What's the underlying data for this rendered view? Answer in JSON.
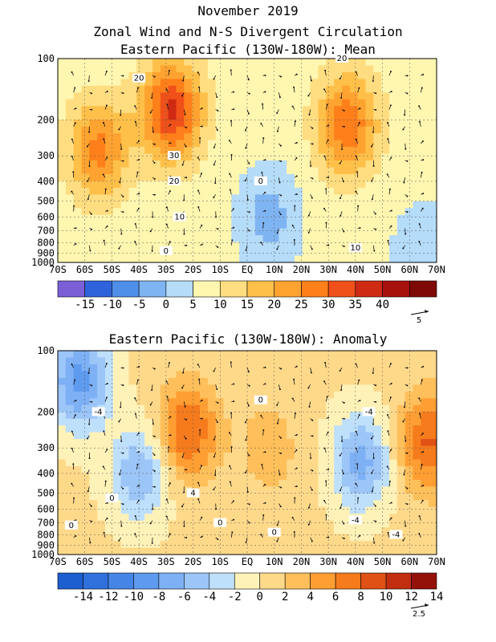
{
  "header": {
    "title": "November 2019",
    "subtitle": "Zonal Wind and N-S Divergent Circulation"
  },
  "chart_data": [
    {
      "type": "heatmap",
      "title": "Eastern Pacific (130W-180W): Mean",
      "x_ticks": [
        "70S",
        "60S",
        "50S",
        "40S",
        "30S",
        "20S",
        "10S",
        "EQ",
        "10N",
        "20N",
        "30N",
        "40N",
        "50N",
        "60N",
        "70N"
      ],
      "y_ticks": [
        "100",
        "200",
        "300",
        "400",
        "500",
        "600",
        "700",
        "800",
        "900",
        "1000"
      ],
      "y_scale": "log",
      "xlim": [
        "70S",
        "70N"
      ],
      "ylim": [
        1000,
        100
      ],
      "colorbar_labels": [
        "-15",
        "-10",
        "-5",
        "0",
        "5",
        "10",
        "15",
        "20",
        "25",
        "30",
        "35",
        "40"
      ],
      "colorbar_colors": [
        "#7a5fd6",
        "#2f63dc",
        "#4f8ee9",
        "#7fb4f2",
        "#b5dcf9",
        "#fff6b0",
        "#ffdd80",
        "#ffc04a",
        "#ffa330",
        "#ff7f1a",
        "#f0501a",
        "#cf2a14",
        "#a8120c",
        "#7d0a06"
      ],
      "contour_labels": [
        "20",
        "30",
        "20",
        "10",
        "0",
        "0",
        "20",
        "10"
      ],
      "vector_scale_label": "5",
      "field_blobs": [
        {
          "lat": -55,
          "p": 280,
          "value": 24
        },
        {
          "lat": -28,
          "p": 180,
          "value": 33
        },
        {
          "lat": 37,
          "p": 210,
          "value": 27
        },
        {
          "lat": 8,
          "p": 600,
          "value": -5
        },
        {
          "lat": 65,
          "p": 900,
          "value": -2
        }
      ]
    },
    {
      "type": "heatmap",
      "title": "Eastern Pacific (130W-180W): Anomaly",
      "x_ticks": [
        "70S",
        "60S",
        "50S",
        "40S",
        "30S",
        "20S",
        "10S",
        "EQ",
        "10N",
        "20N",
        "30N",
        "40N",
        "50N",
        "60N",
        "70N"
      ],
      "y_ticks": [
        "100",
        "200",
        "300",
        "400",
        "500",
        "600",
        "700",
        "800",
        "900",
        "1000"
      ],
      "y_scale": "log",
      "xlim": [
        "70S",
        "70N"
      ],
      "ylim": [
        1000,
        100
      ],
      "colorbar_labels": [
        "-14",
        "-12",
        "-10",
        "-8",
        "-6",
        "-4",
        "-2",
        "0",
        "2",
        "4",
        "6",
        "8",
        "10",
        "12",
        "14"
      ],
      "colorbar_colors": [
        "#1e5fd0",
        "#2f70dc",
        "#4585e6",
        "#5e9aee",
        "#7db0f4",
        "#9cc5f8",
        "#bfe0fb",
        "#fff2b8",
        "#ffd98a",
        "#ffbf5a",
        "#ff9e33",
        "#f57b1c",
        "#e05115",
        "#c12e10",
        "#94110a"
      ],
      "contour_labels": [
        "0",
        "-4",
        "0",
        "0",
        "-4",
        "0",
        "4",
        "-4",
        "0",
        "-4"
      ],
      "vector_scale_label": "2.5",
      "field_blobs": [
        {
          "lat": -62,
          "p": 140,
          "value": -9
        },
        {
          "lat": -40,
          "p": 400,
          "value": -6
        },
        {
          "lat": -22,
          "p": 250,
          "value": 8
        },
        {
          "lat": 8,
          "p": 300,
          "value": 3
        },
        {
          "lat": 42,
          "p": 350,
          "value": -7
        },
        {
          "lat": 67,
          "p": 280,
          "value": 8
        }
      ]
    }
  ]
}
